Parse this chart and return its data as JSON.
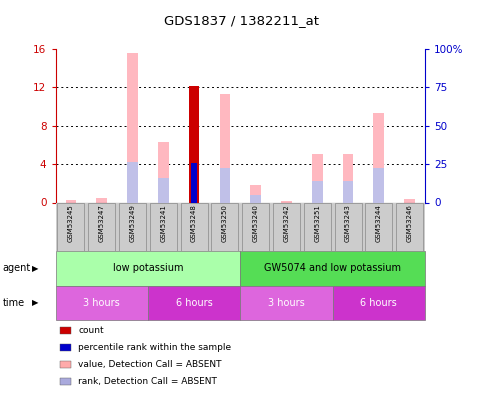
{
  "title": "GDS1837 / 1382211_at",
  "samples": [
    "GSM53245",
    "GSM53247",
    "GSM53249",
    "GSM53241",
    "GSM53248",
    "GSM53250",
    "GSM53240",
    "GSM53242",
    "GSM53251",
    "GSM53243",
    "GSM53244",
    "GSM53246"
  ],
  "pink_bars": [
    0.3,
    0.5,
    15.5,
    6.3,
    0.0,
    11.3,
    1.8,
    0.2,
    5.0,
    5.0,
    9.3,
    0.4
  ],
  "red_bars": [
    0.0,
    0.0,
    0.0,
    0.0,
    12.1,
    0.0,
    0.0,
    0.0,
    0.0,
    0.0,
    0.0,
    0.0
  ],
  "light_blue_bars": [
    0.0,
    0.0,
    4.2,
    2.5,
    0.0,
    3.6,
    0.8,
    0.0,
    2.2,
    2.2,
    3.6,
    0.0
  ],
  "blue_bars": [
    0.0,
    0.0,
    0.0,
    0.0,
    4.1,
    0.0,
    0.0,
    0.0,
    0.0,
    0.0,
    0.0,
    0.0
  ],
  "ylim": [
    0,
    16
  ],
  "yticks_left": [
    0,
    4,
    8,
    12,
    16
  ],
  "ytick_labels_left": [
    "0",
    "4",
    "8",
    "12",
    "16"
  ],
  "ytick_labels_right": [
    "0",
    "25",
    "50",
    "75",
    "100%"
  ],
  "left_axis_color": "#cc0000",
  "right_axis_color": "#0000cc",
  "bar_width": 0.35,
  "agent_groups": [
    {
      "label": "low potassium",
      "start": 0,
      "end": 6,
      "color": "#aaffaa"
    },
    {
      "label": "GW5074 and low potassium",
      "start": 6,
      "end": 12,
      "color": "#55dd55"
    }
  ],
  "time_groups": [
    {
      "label": "3 hours",
      "start": 0,
      "end": 3,
      "color": "#dd66dd"
    },
    {
      "label": "6 hours",
      "start": 3,
      "end": 6,
      "color": "#cc33cc"
    },
    {
      "label": "3 hours",
      "start": 6,
      "end": 9,
      "color": "#dd66dd"
    },
    {
      "label": "6 hours",
      "start": 9,
      "end": 12,
      "color": "#cc33cc"
    }
  ],
  "legend_items": [
    {
      "label": "count",
      "color": "#cc0000"
    },
    {
      "label": "percentile rank within the sample",
      "color": "#0000cc"
    },
    {
      "label": "value, Detection Call = ABSENT",
      "color": "#ffaaaa"
    },
    {
      "label": "rank, Detection Call = ABSENT",
      "color": "#aaaadd"
    }
  ],
  "sample_box_color": "#cccccc",
  "sample_box_edge": "#888888",
  "background_color": "#ffffff"
}
